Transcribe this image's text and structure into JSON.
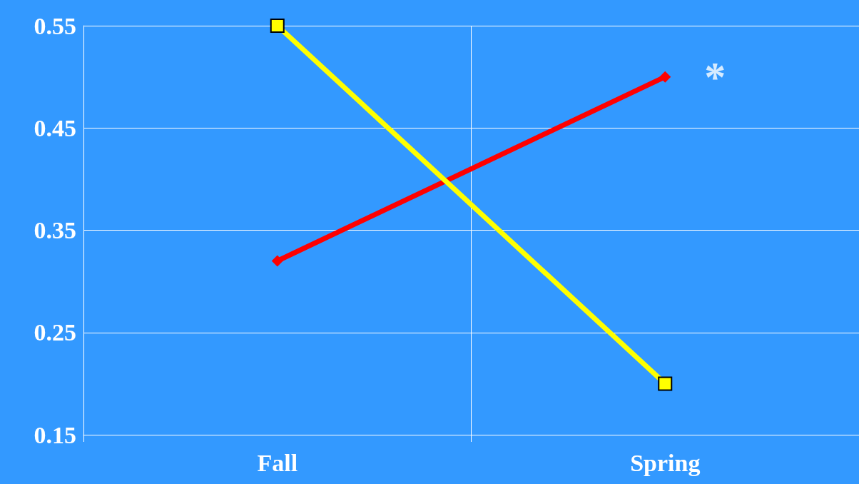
{
  "chart_data": {
    "type": "line",
    "categories": [
      "Fall",
      "Spring"
    ],
    "series": [
      {
        "color": "#ff0000",
        "marker": "diamond",
        "values": [
          0.32,
          0.5
        ]
      },
      {
        "color": "#ffff00",
        "marker": "square",
        "values": [
          0.55,
          0.2
        ]
      }
    ],
    "ylim": [
      0.15,
      0.55
    ],
    "yticks": [
      0.15,
      0.25,
      0.35,
      0.45,
      0.55
    ],
    "grid": true,
    "annotations": [
      {
        "text": "*",
        "x": "Spring",
        "y": 0.5
      }
    ]
  }
}
